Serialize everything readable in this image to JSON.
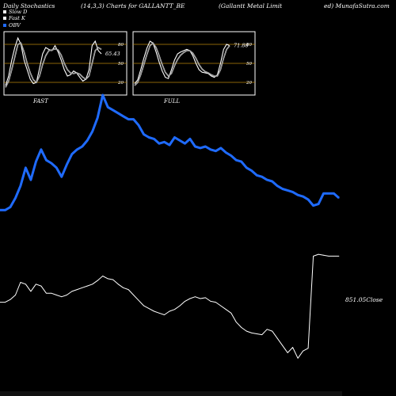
{
  "header": {
    "title": "Daily Stochastics",
    "params": "(14,3,3) Charts for GALLANTT_BE",
    "company": "(Gallantt Metal Limit",
    "site": "ed) MunafaSutra.com"
  },
  "legend": [
    {
      "label": "Slow D",
      "color": "#ffffff"
    },
    {
      "label": "Fast K",
      "color": "#ffffff"
    },
    {
      "label": "OBV",
      "color": "#1f6bff"
    }
  ],
  "colors": {
    "obv": "#1f6bff",
    "close": "#ffffff",
    "band": "#b8860b",
    "panel_border": "#ffffff"
  },
  "chart_data": [
    {
      "type": "line",
      "title": "FAST",
      "ylim": [
        0,
        100
      ],
      "y_ticks": [
        20,
        50,
        80
      ],
      "last_value_label": "65.43",
      "series": [
        {
          "name": "Fast K",
          "values": [
            15,
            30,
            55,
            75,
            90,
            80,
            55,
            40,
            25,
            18,
            20,
            42,
            65,
            75,
            72,
            70,
            78,
            68,
            55,
            40,
            30,
            32,
            38,
            35,
            28,
            22,
            25,
            40,
            78,
            85,
            70,
            65
          ]
        },
        {
          "name": "Slow D",
          "values": [
            12,
            22,
            40,
            60,
            80,
            82,
            68,
            50,
            35,
            24,
            20,
            30,
            48,
            62,
            70,
            71,
            73,
            71,
            63,
            50,
            40,
            35,
            34,
            35,
            33,
            28,
            25,
            30,
            50,
            70,
            75,
            72
          ]
        }
      ]
    },
    {
      "type": "line",
      "title": "FULL",
      "ylim": [
        0,
        100
      ],
      "y_ticks": [
        20,
        50,
        80
      ],
      "last_value_label": "71.88",
      "series": [
        {
          "name": "Fast K",
          "values": [
            18,
            24,
            40,
            58,
            74,
            85,
            82,
            68,
            52,
            38,
            28,
            26,
            40,
            55,
            65,
            68,
            70,
            72,
            70,
            62,
            50,
            40,
            36,
            35,
            34,
            30,
            28,
            32,
            50,
            72,
            80,
            78
          ]
        },
        {
          "name": "Slow D",
          "values": [
            15,
            20,
            32,
            48,
            64,
            78,
            82,
            75,
            62,
            48,
            36,
            30,
            34,
            46,
            56,
            63,
            67,
            70,
            70,
            66,
            58,
            48,
            41,
            37,
            35,
            32,
            30,
            30,
            40,
            58,
            72,
            78
          ]
        }
      ]
    },
    {
      "type": "line",
      "close_label": "851.05",
      "close_suffix": "Close",
      "series": [
        {
          "name": "OBV",
          "values": [
            60,
            60,
            62,
            68,
            76,
            88,
            80,
            92,
            100,
            93,
            91,
            88,
            82,
            90,
            97,
            100,
            102,
            106,
            112,
            121,
            136,
            128,
            126,
            124,
            122,
            120,
            120,
            116,
            110,
            108,
            107,
            104,
            105,
            103,
            108,
            106,
            104,
            107,
            102,
            101,
            102,
            100,
            99,
            101,
            98,
            96,
            93,
            92,
            88,
            86,
            83,
            82,
            80,
            79,
            76,
            74,
            73,
            72,
            70,
            69,
            67,
            63,
            64,
            71,
            71,
            71,
            68
          ]
        },
        {
          "name": "Close",
          "values": [
            800,
            800,
            803,
            808,
            822,
            820,
            812,
            820,
            818,
            810,
            810,
            808,
            806,
            808,
            812,
            814,
            816,
            818,
            820,
            824,
            829,
            826,
            825,
            820,
            816,
            814,
            808,
            802,
            796,
            793,
            790,
            788,
            786,
            790,
            792,
            796,
            801,
            804,
            806,
            804,
            805,
            801,
            800,
            796,
            792,
            788,
            778,
            772,
            768,
            766,
            765,
            764,
            770,
            768,
            760,
            752,
            744,
            750,
            738,
            746,
            749,
            851,
            853,
            852,
            851,
            851,
            851
          ]
        }
      ]
    }
  ]
}
